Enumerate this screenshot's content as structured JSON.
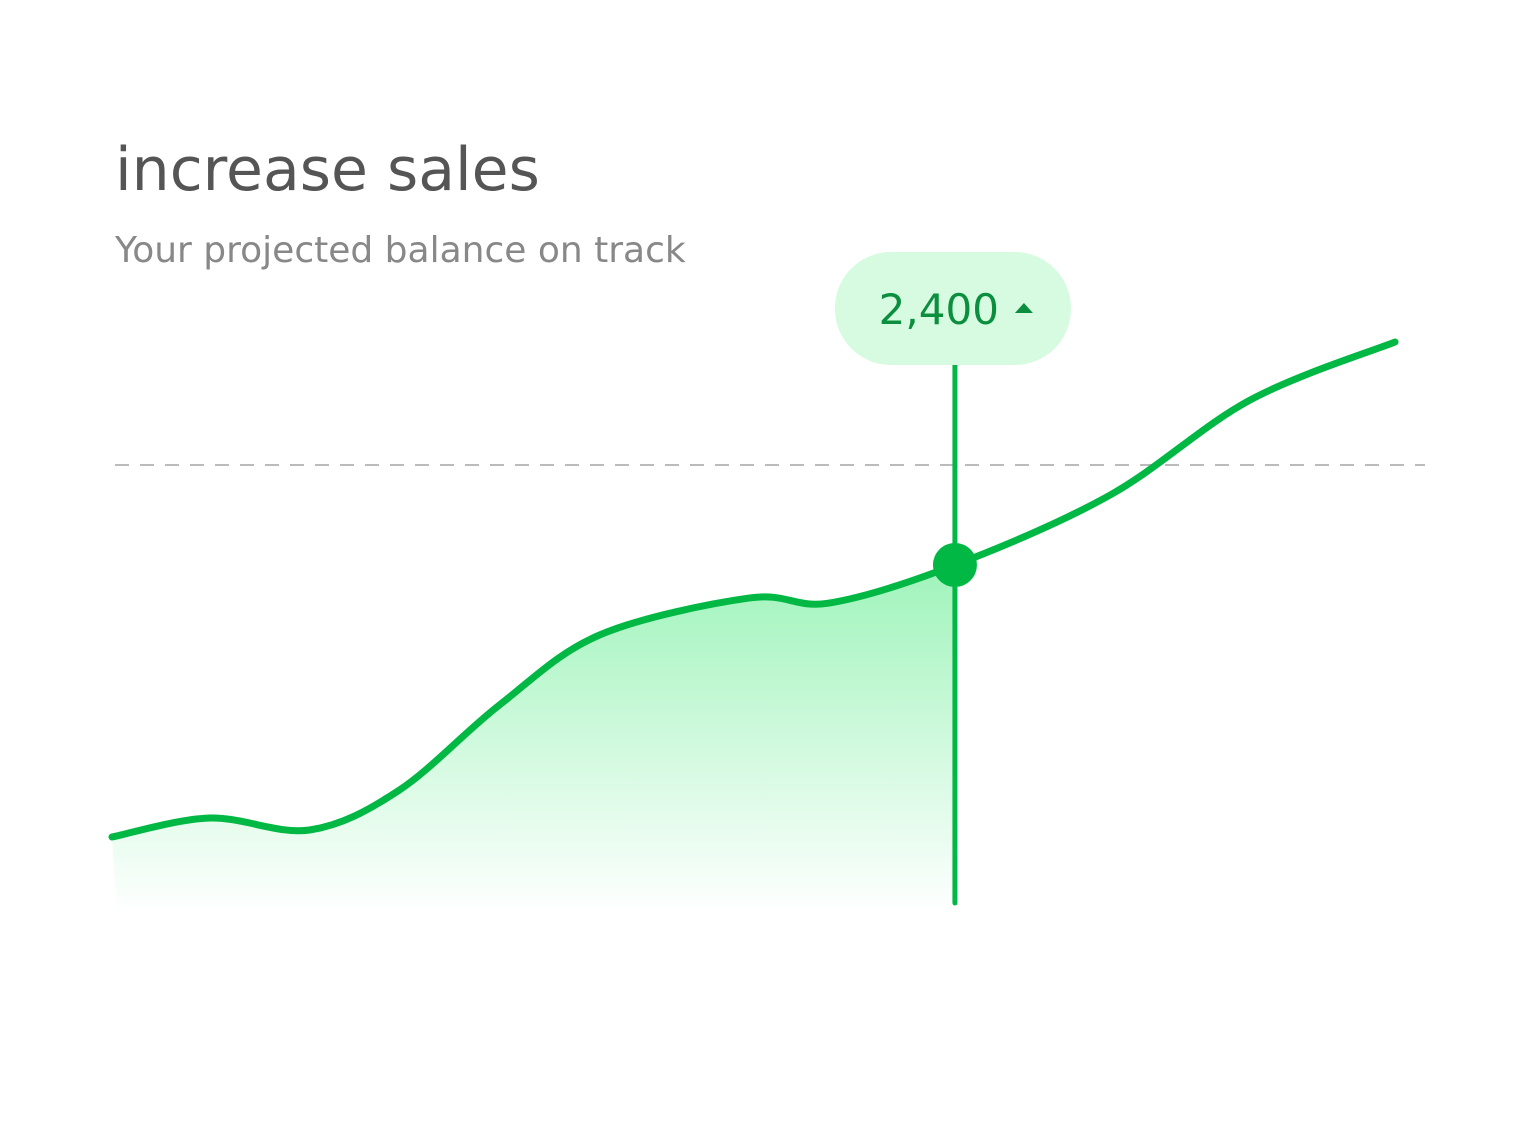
{
  "chart_data": {
    "type": "line",
    "title": "increase sales",
    "subtitle": "Your projected balance on track",
    "x": [
      0,
      7.6,
      15.4,
      22.4,
      30.2,
      38.0,
      49.7,
      55.9,
      65.7,
      77.8,
      88.7,
      100
    ],
    "xlim": [
      0,
      100
    ],
    "ylim": [
      0,
      4800
    ],
    "series": [
      {
        "color": "#00b843",
        "values": [
          535,
          665,
          583,
          857,
          1440,
          1920,
          2174,
          2139,
          2400,
          2880,
          3531,
          3929
        ],
        "value_labels": [
          null,
          null,
          null,
          null,
          null,
          null,
          null,
          null,
          "2,400",
          null,
          null,
          null
        ]
      }
    ],
    "reference_line": 3086,
    "highlight_index": 8
  }
}
